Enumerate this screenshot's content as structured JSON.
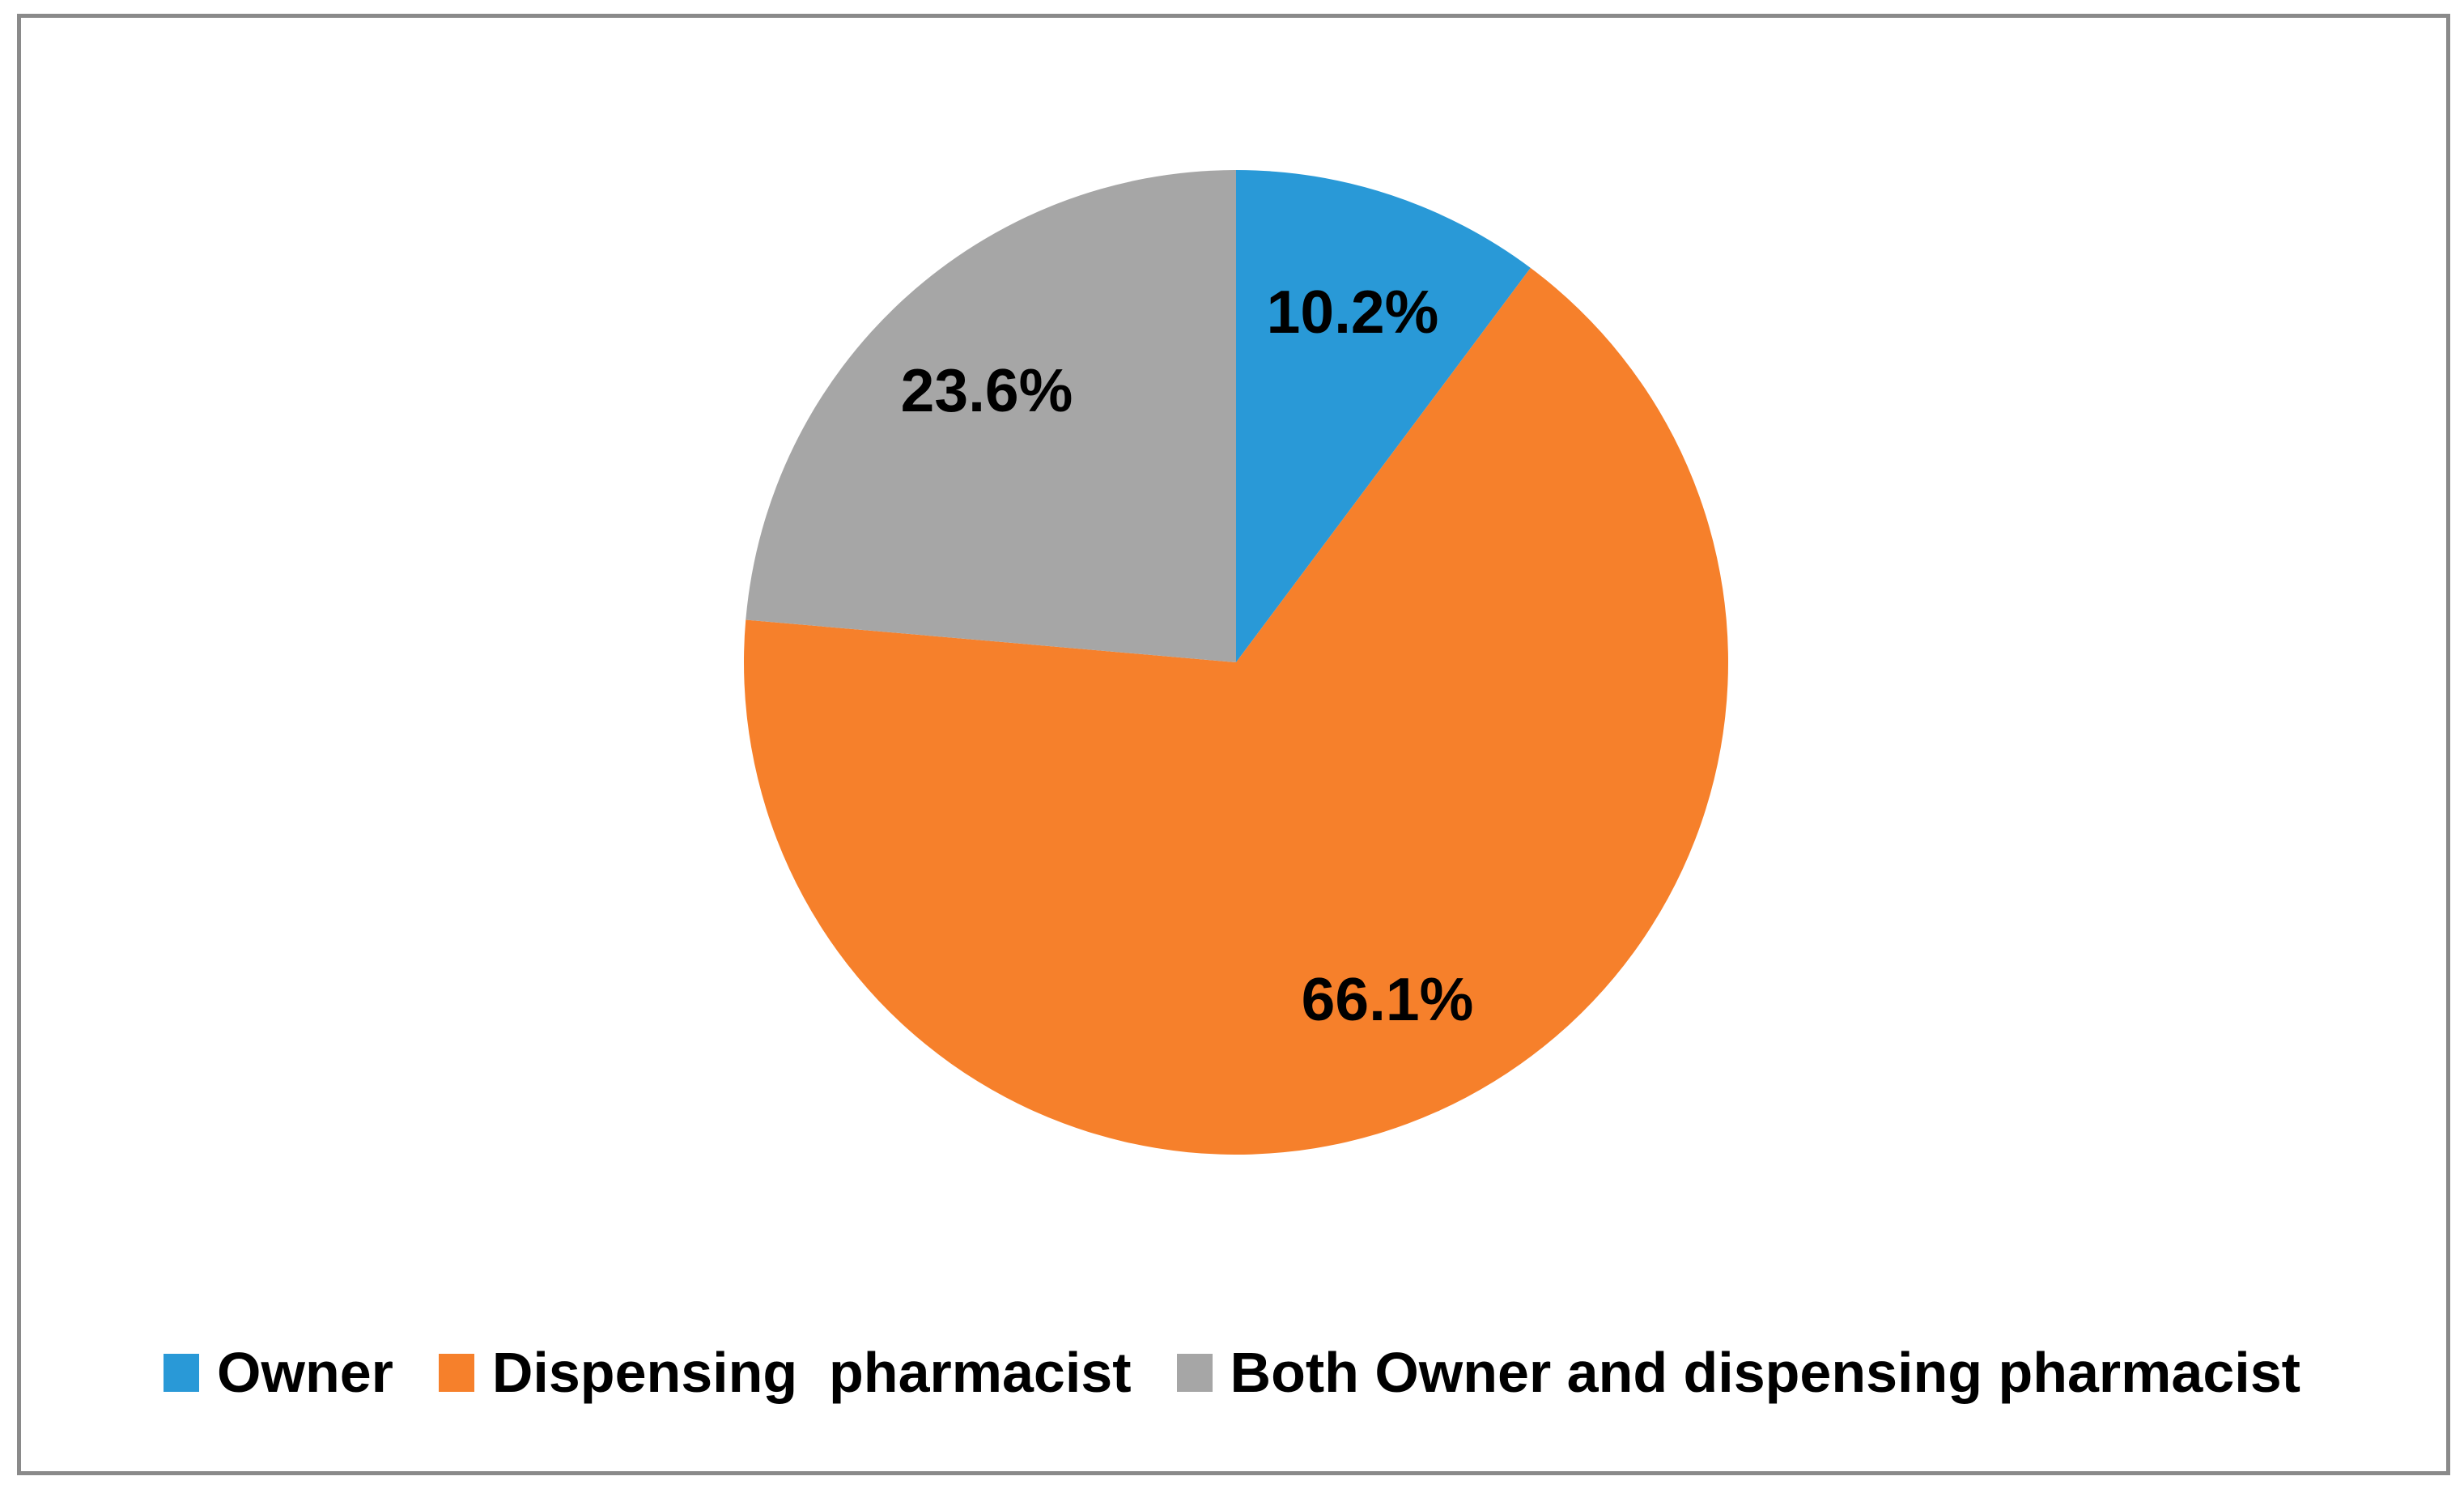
{
  "chart_data": {
    "type": "pie",
    "title": "",
    "categories": [
      "Owner",
      "Dispensing  pharmacist",
      "Both Owner and dispensing pharmacist"
    ],
    "values": [
      10.2,
      66.1,
      23.6
    ],
    "slice_labels": [
      "10.2%",
      "66.1%",
      "23.6%"
    ],
    "colors": [
      "#2999d7",
      "#f6802b",
      "#a6a6a6"
    ],
    "label_color": "#000000",
    "start_angle_deg": 0,
    "direction": "clockwise",
    "legend_position": "bottom",
    "frame_border_color": "#8a8a8a"
  }
}
